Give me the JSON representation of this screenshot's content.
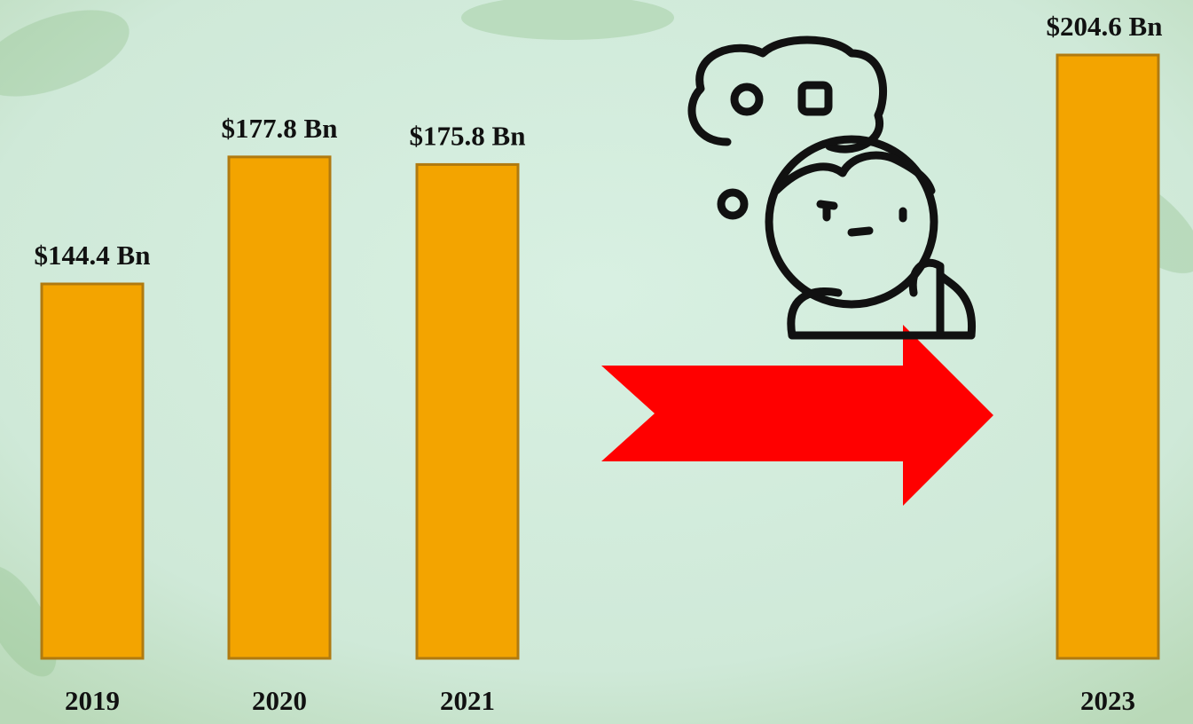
{
  "chart_data": {
    "type": "bar",
    "categories": [
      "2019",
      "2020",
      "2021",
      "2023"
    ],
    "values": [
      144.4,
      177.8,
      175.8,
      204.6
    ],
    "value_labels": [
      "$144.4 Bn",
      "$177.8 Bn",
      "$175.8 Bn",
      "$204.6 Bn"
    ],
    "color": "#f3a400"
  }
}
